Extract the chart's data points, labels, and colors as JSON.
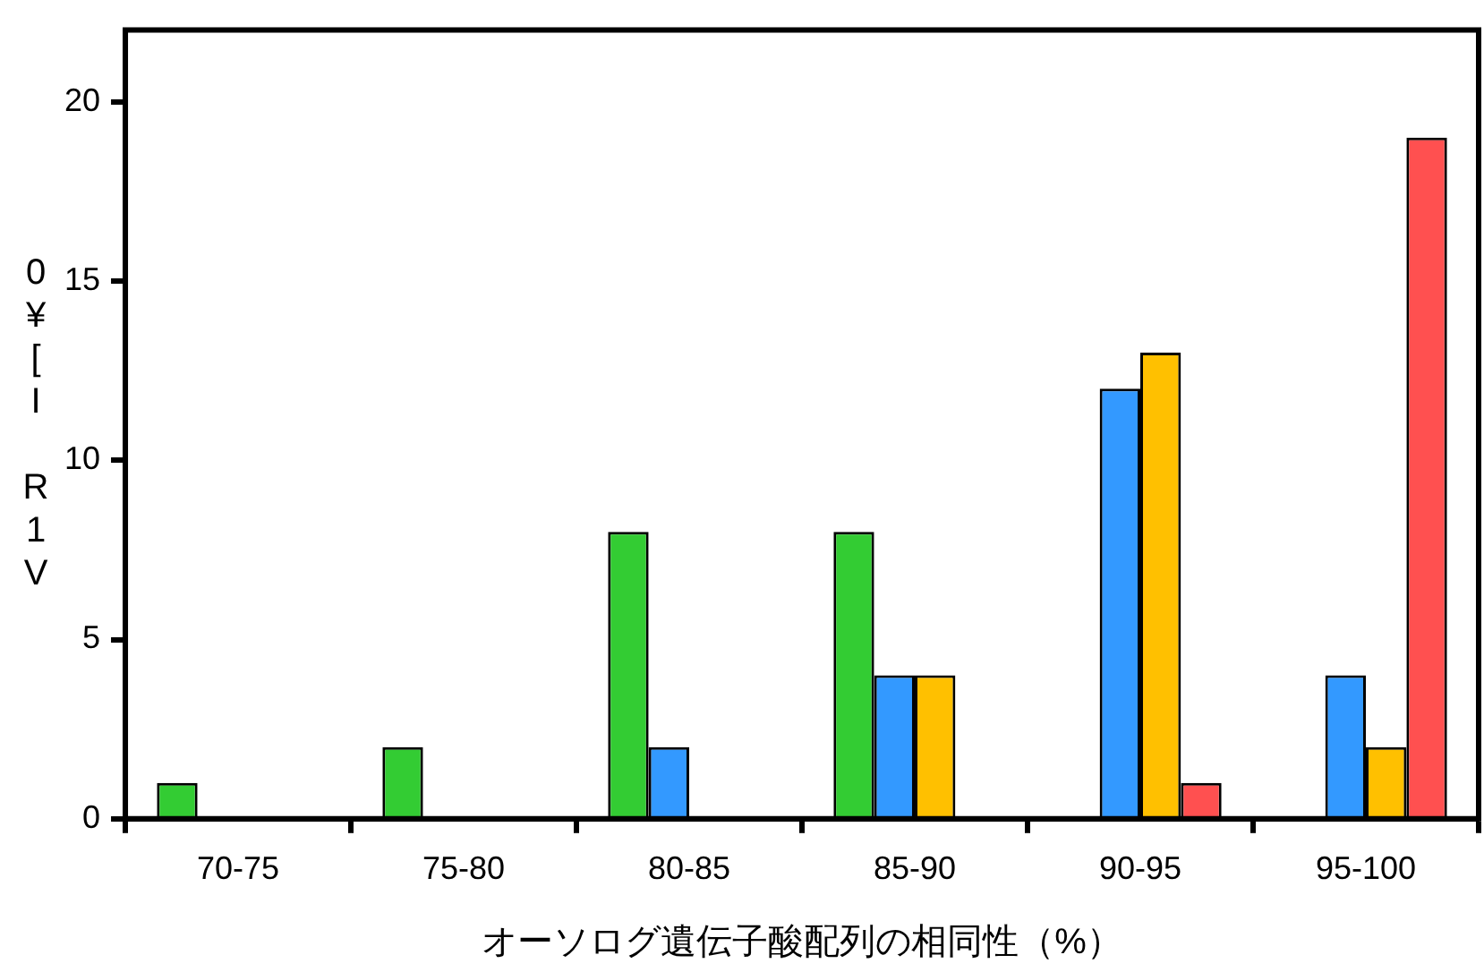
{
  "chart_data": {
    "type": "bar",
    "xlabel": "オーソログ遺伝子酸配列の相同性（%）",
    "ylabel": "0¥[I R1V",
    "categories": [
      "70-75",
      "75-80",
      "80-85",
      "85-90",
      "90-95",
      "95-100"
    ],
    "series": [
      {
        "color": "#33cc33",
        "values": [
          1,
          2,
          8,
          8,
          null,
          null
        ]
      },
      {
        "color": "#3399ff",
        "values": [
          null,
          null,
          2,
          4,
          12,
          4
        ]
      },
      {
        "color": "#ffc000",
        "values": [
          null,
          null,
          null,
          4,
          13,
          2
        ]
      },
      {
        "color": "#ff5050",
        "values": [
          null,
          null,
          null,
          null,
          1,
          19
        ]
      }
    ],
    "ylim": [
      0,
      22
    ],
    "yticks": [
      0,
      5,
      10,
      15,
      20
    ]
  }
}
